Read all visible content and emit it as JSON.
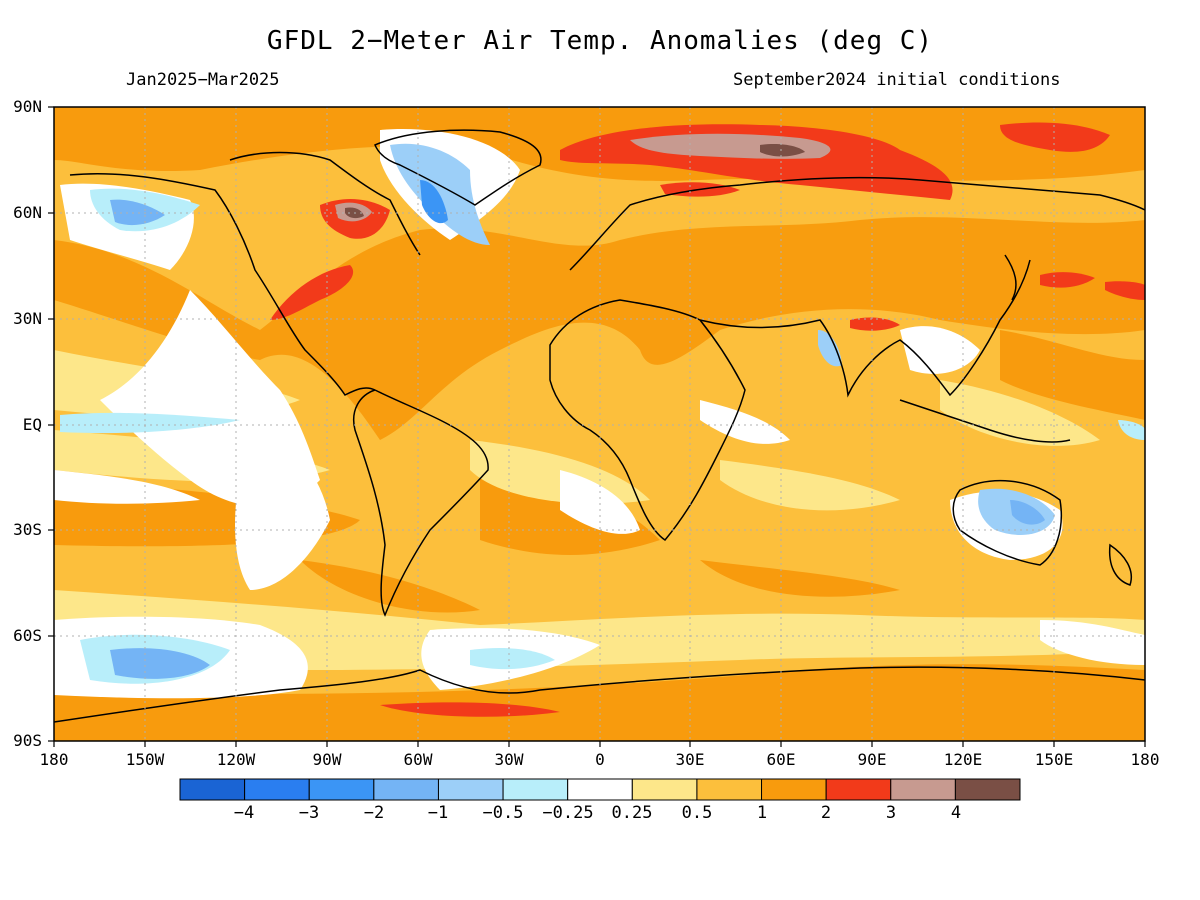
{
  "title": "GFDL 2−Meter Air Temp. Anomalies (deg C)",
  "subtitle_left": "Jan2025−Mar2025",
  "subtitle_right": "September2024 initial conditions",
  "lat_labels": [
    "90N",
    "60N",
    "30N",
    "EQ",
    "30S",
    "60S",
    "90S"
  ],
  "lon_labels": [
    "180",
    "150W",
    "120W",
    "90W",
    "60W",
    "30W",
    "0",
    "30E",
    "60E",
    "90E",
    "120E",
    "150E",
    "180"
  ],
  "colorbar": {
    "colors": [
      "#1a64d4",
      "#2a7ef0",
      "#3b95f5",
      "#74b4f5",
      "#9ccff8",
      "#b8eefa",
      "#ffffff",
      "#fde78a",
      "#fcbf3c",
      "#f89b0d",
      "#f23a1a",
      "#c79a90",
      "#7a4f45"
    ],
    "labels": [
      "−4",
      "−3",
      "−2",
      "−1",
      "−0.5",
      "−0.25",
      "0.25",
      "0.5",
      "1",
      "2",
      "3",
      "4"
    ]
  },
  "colors": {
    "background_anomaly": "#fcbf3c",
    "coast": "#000000",
    "grid": "#b0b0b0"
  }
}
